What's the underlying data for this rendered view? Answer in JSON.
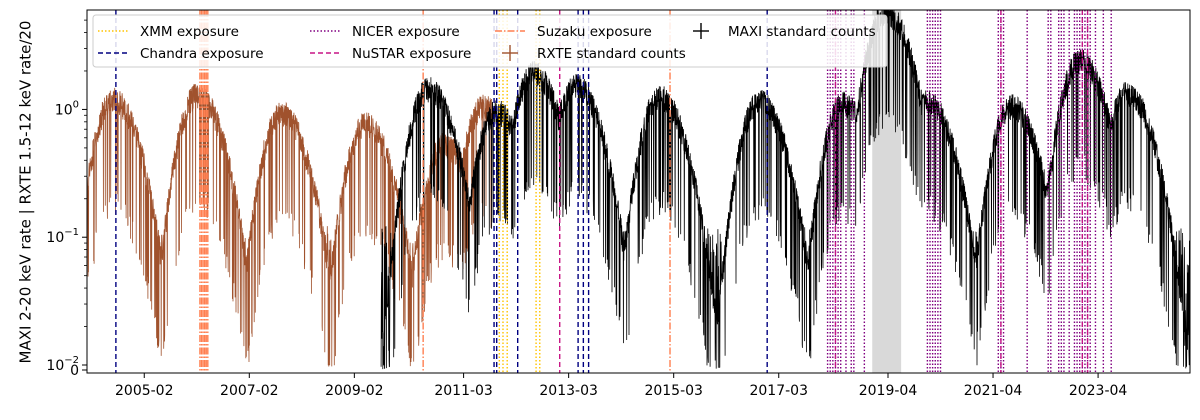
{
  "chart_data": {
    "type": "line",
    "title": "",
    "xlabel": "",
    "ylabel": "MAXI 2-20 keV rate | RXTE 1.5-12 keV rate/20",
    "yscale": "log",
    "ylim": [
      0,
      6
    ],
    "xlim": [
      2004.0,
      2025.0
    ],
    "x_tick_labels": [
      "2005-02",
      "2007-02",
      "2009-02",
      "2011-03",
      "2013-03",
      "2015-03",
      "2017-03",
      "2019-04",
      "2021-04",
      "2023-04"
    ],
    "x_tick_values": [
      2005.09,
      2007.09,
      2009.09,
      2011.17,
      2013.17,
      2015.17,
      2017.17,
      2019.25,
      2021.25,
      2023.25
    ],
    "y_tick_labels": [
      "0",
      "10^-2",
      "10^-1",
      "10^0"
    ],
    "y_tick_values": [
      0,
      0.01,
      0.1,
      1.0
    ],
    "legend_position": "top-left",
    "legend": [
      {
        "label": "XMM exposure",
        "style": "dotted",
        "color": "#ffc400"
      },
      {
        "label": "Chandra exposure",
        "style": "dashed",
        "color": "#000080"
      },
      {
        "label": "NICER exposure",
        "style": "dotted",
        "color": "#800080"
      },
      {
        "label": "NuSTAR exposure",
        "style": "dashed",
        "color": "#c71585"
      },
      {
        "label": "Suzaku exposure",
        "style": "dashdot",
        "color": "#ff7f50"
      },
      {
        "label": "RXTE standard counts",
        "style": "cross",
        "color": "#a0522d"
      },
      {
        "label": "MAXI standard counts",
        "style": "cross",
        "color": "#000000"
      }
    ],
    "shaded_region": {
      "x": [
        2018.95,
        2019.5
      ],
      "color": "#d9d9d9"
    },
    "series": [
      {
        "name": "RXTE standard counts",
        "color": "#a0522d",
        "x_range": [
          2004.0,
          2011.7
        ],
        "outbursts": [
          {
            "peak_x": 2004.5,
            "peak_y": 1.25
          },
          {
            "peak_x": 2006.1,
            "peak_y": 1.35
          },
          {
            "peak_x": 2007.7,
            "peak_y": 0.97
          },
          {
            "peak_x": 2009.3,
            "peak_y": 0.8
          },
          {
            "peak_x": 2010.8,
            "peak_y": 0.55
          },
          {
            "peak_x": 2011.55,
            "peak_y": 1.1
          }
        ]
      },
      {
        "name": "MAXI standard counts",
        "color": "#000000",
        "x_range": [
          2009.6,
          2025.0
        ],
        "outbursts": [
          {
            "peak_x": 2010.5,
            "peak_y": 1.5
          },
          {
            "peak_x": 2011.8,
            "peak_y": 1.0
          },
          {
            "peak_x": 2012.5,
            "peak_y": 2.0
          },
          {
            "peak_x": 2013.3,
            "peak_y": 1.6
          },
          {
            "peak_x": 2014.9,
            "peak_y": 1.3
          },
          {
            "peak_x": 2016.8,
            "peak_y": 1.2
          },
          {
            "peak_x": 2018.4,
            "peak_y": 1.15
          },
          {
            "peak_x": 2019.2,
            "peak_y": 6.0
          },
          {
            "peak_x": 2020.0,
            "peak_y": 1.2
          },
          {
            "peak_x": 2021.6,
            "peak_y": 1.1
          },
          {
            "peak_x": 2022.9,
            "peak_y": 2.5
          },
          {
            "peak_x": 2023.8,
            "peak_y": 1.4
          }
        ]
      }
    ],
    "exposures": {
      "XMM": [
        2011.85,
        2011.92,
        2012.0,
        2012.55,
        2012.62
      ],
      "Chandra": [
        2004.55,
        2011.75,
        2011.8,
        2012.2,
        2013.35,
        2013.45,
        2013.55,
        2016.95
      ],
      "NICER": [
        2018.1,
        2018.15,
        2018.2,
        2018.25,
        2018.3,
        2018.35,
        2018.45,
        2018.55,
        2018.6,
        2018.8,
        2020.0,
        2020.05,
        2020.1,
        2020.15,
        2020.2,
        2020.25,
        2021.35,
        2021.4,
        2021.45,
        2021.9,
        2022.3,
        2022.35,
        2022.5,
        2022.55,
        2022.6,
        2022.7,
        2022.8,
        2022.85,
        2022.9,
        2022.95,
        2023.0,
        2023.05,
        2023.1,
        2023.2,
        2023.35,
        2023.5
      ],
      "NuSTAR": [
        2013.0,
        2018.25,
        2021.4,
        2022.95,
        2023.05
      ],
      "Suzaku": [
        2006.15,
        2006.18,
        2006.21,
        2006.24,
        2006.27,
        2006.3,
        2010.4,
        2015.1
      ]
    }
  }
}
